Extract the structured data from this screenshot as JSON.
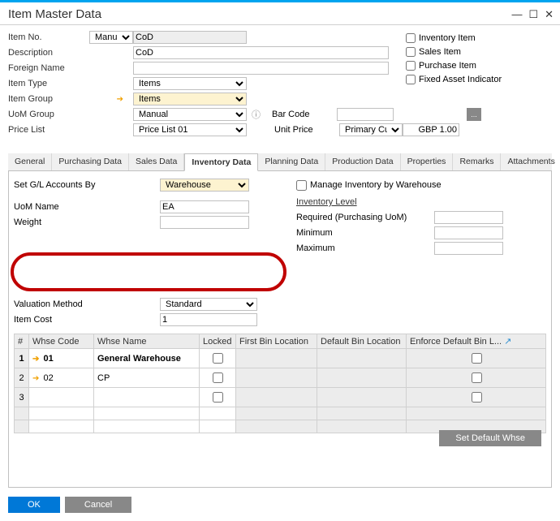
{
  "window": {
    "title": "Item Master Data"
  },
  "header": {
    "item_no_label": "Item No.",
    "item_no_mode": "Manual",
    "item_no_value": "CoD",
    "description_label": "Description",
    "description_value": "CoD",
    "foreign_name_label": "Foreign Name",
    "foreign_name_value": "",
    "item_type_label": "Item Type",
    "item_type_value": "Items",
    "item_group_label": "Item Group",
    "item_group_value": "Items",
    "uom_group_label": "UoM Group",
    "uom_group_value": "Manual",
    "price_list_label": "Price List",
    "price_list_value": "Price List 01",
    "bar_code_label": "Bar Code",
    "bar_code_value": "",
    "unit_price_label": "Unit Price",
    "unit_price_currency": "Primary Curre",
    "unit_price_value": "GBP 1.00"
  },
  "flags": {
    "inventory_item": "Inventory Item",
    "sales_item": "Sales Item",
    "purchase_item": "Purchase Item",
    "fixed_asset": "Fixed Asset Indicator"
  },
  "tabs": {
    "general": "General",
    "purchasing": "Purchasing Data",
    "sales": "Sales Data",
    "inventory": "Inventory Data",
    "planning": "Planning Data",
    "production": "Production Data",
    "properties": "Properties",
    "remarks": "Remarks",
    "attachments": "Attachments"
  },
  "inv": {
    "set_gl_label": "Set G/L Accounts By",
    "set_gl_value": "Warehouse",
    "uom_name_label": "UoM Name",
    "uom_name_value": "EA",
    "weight_label": "Weight",
    "weight_value": "",
    "manage_by_whse_label": "Manage Inventory by Warehouse",
    "inventory_level_label": "Inventory Level",
    "required_label": "Required (Purchasing UoM)",
    "minimum_label": "Minimum",
    "maximum_label": "Maximum",
    "valuation_method_label": "Valuation Method",
    "valuation_method_value": "Standard",
    "item_cost_label": "Item Cost",
    "item_cost_value": "1",
    "set_default_whse": "Set Default Whse"
  },
  "grid": {
    "cols": {
      "num": "#",
      "whse_code": "Whse Code",
      "whse_name": "Whse Name",
      "locked": "Locked",
      "first_bin": "First Bin Location",
      "default_bin": "Default Bin Location",
      "enforce_bin": "Enforce Default Bin L..."
    },
    "rows": [
      {
        "n": "1",
        "code": "01",
        "name": "General Warehouse",
        "bold": true
      },
      {
        "n": "2",
        "code": "02",
        "name": "CP",
        "bold": false
      },
      {
        "n": "3",
        "code": "",
        "name": "",
        "bold": false
      }
    ]
  },
  "footer": {
    "ok": "OK",
    "cancel": "Cancel"
  }
}
